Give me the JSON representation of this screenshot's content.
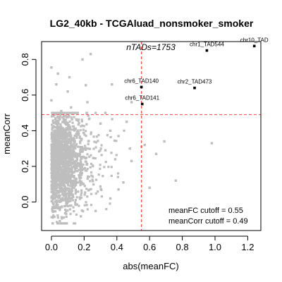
{
  "chart_data": {
    "type": "scatter",
    "title": "LG2_40kb - TCGAluad_nonsmoker_smoker",
    "xlabel": "abs(meanFC)",
    "ylabel": "meanCorr",
    "xlim": [
      -0.06,
      1.28
    ],
    "ylim": [
      -0.16,
      0.9
    ],
    "x_ticks": [
      "0.0",
      "0.2",
      "0.4",
      "0.6",
      "0.8",
      "1.0",
      "1.2"
    ],
    "x_tick_values": [
      0.0,
      0.2,
      0.4,
      0.6,
      0.8,
      1.0,
      1.2
    ],
    "y_ticks": [
      "0.0",
      "0.2",
      "0.4",
      "0.6",
      "0.8"
    ],
    "y_tick_values": [
      0.0,
      0.2,
      0.4,
      0.6,
      0.8
    ],
    "annotation": "nTADs=1753",
    "n_points": 1753,
    "point_color": "#bebebe",
    "highlight_color": "#000000",
    "cutoff_color": "#ff4040",
    "cutoffs": {
      "meanFC": 0.55,
      "meanCorr": 0.49
    },
    "cutoff_labels": [
      "meanFC cutoff = 0.55",
      "meanCorr cutoff = 0.49"
    ],
    "highlighted_points": [
      {
        "label": "chr1_TAD544",
        "x": 0.95,
        "y": 0.85
      },
      {
        "label": "chr10_TAD",
        "x": 1.24,
        "y": 0.875
      },
      {
        "label": "chr6_TAD140",
        "x": 0.55,
        "y": 0.645
      },
      {
        "label": "chr2_TAD473",
        "x": 0.875,
        "y": 0.64
      },
      {
        "label": "chr6_TAD141",
        "x": 0.555,
        "y": 0.55
      }
    ],
    "grey_points": [
      {
        "x": 0.24,
        "y": 0.83
      },
      {
        "x": 0.19,
        "y": 0.8
      },
      {
        "x": 0.0,
        "y": 0.755
      },
      {
        "x": 0.04,
        "y": 0.72
      },
      {
        "x": 0.11,
        "y": 0.7
      },
      {
        "x": 0.03,
        "y": 0.66
      },
      {
        "x": 0.21,
        "y": 0.655
      },
      {
        "x": 0.1,
        "y": 0.62
      },
      {
        "x": 0.37,
        "y": 0.66
      },
      {
        "x": 0.0,
        "y": 0.57
      },
      {
        "x": 0.22,
        "y": 0.56
      },
      {
        "x": 0.49,
        "y": 0.56
      },
      {
        "x": 0.12,
        "y": 0.53
      },
      {
        "x": 0.33,
        "y": 0.5
      },
      {
        "x": 0.06,
        "y": 0.51
      },
      {
        "x": 0.69,
        "y": 0.34
      },
      {
        "x": 0.57,
        "y": 0.32
      },
      {
        "x": 0.98,
        "y": 0.33
      },
      {
        "x": 0.76,
        "y": 0.12
      },
      {
        "x": 0.64,
        "y": 0.27
      },
      {
        "x": 0.48,
        "y": 0.3
      },
      {
        "x": 0.49,
        "y": 0.23
      },
      {
        "x": 0.6,
        "y": 0.08
      },
      {
        "x": 0.44,
        "y": 0.11
      },
      {
        "x": 0.41,
        "y": 0.37
      },
      {
        "x": 0.41,
        "y": 0.07
      },
      {
        "x": 0.36,
        "y": 0.02
      },
      {
        "x": 0.27,
        "y": -0.05
      },
      {
        "x": 0.18,
        "y": -0.08
      },
      {
        "x": 0.08,
        "y": -0.12
      },
      {
        "x": 0.3,
        "y": 0.44
      },
      {
        "x": 0.36,
        "y": 0.4
      },
      {
        "x": 0.46,
        "y": 0.45
      },
      {
        "x": 0.39,
        "y": 0.24
      },
      {
        "x": 0.33,
        "y": 0.29
      }
    ]
  }
}
